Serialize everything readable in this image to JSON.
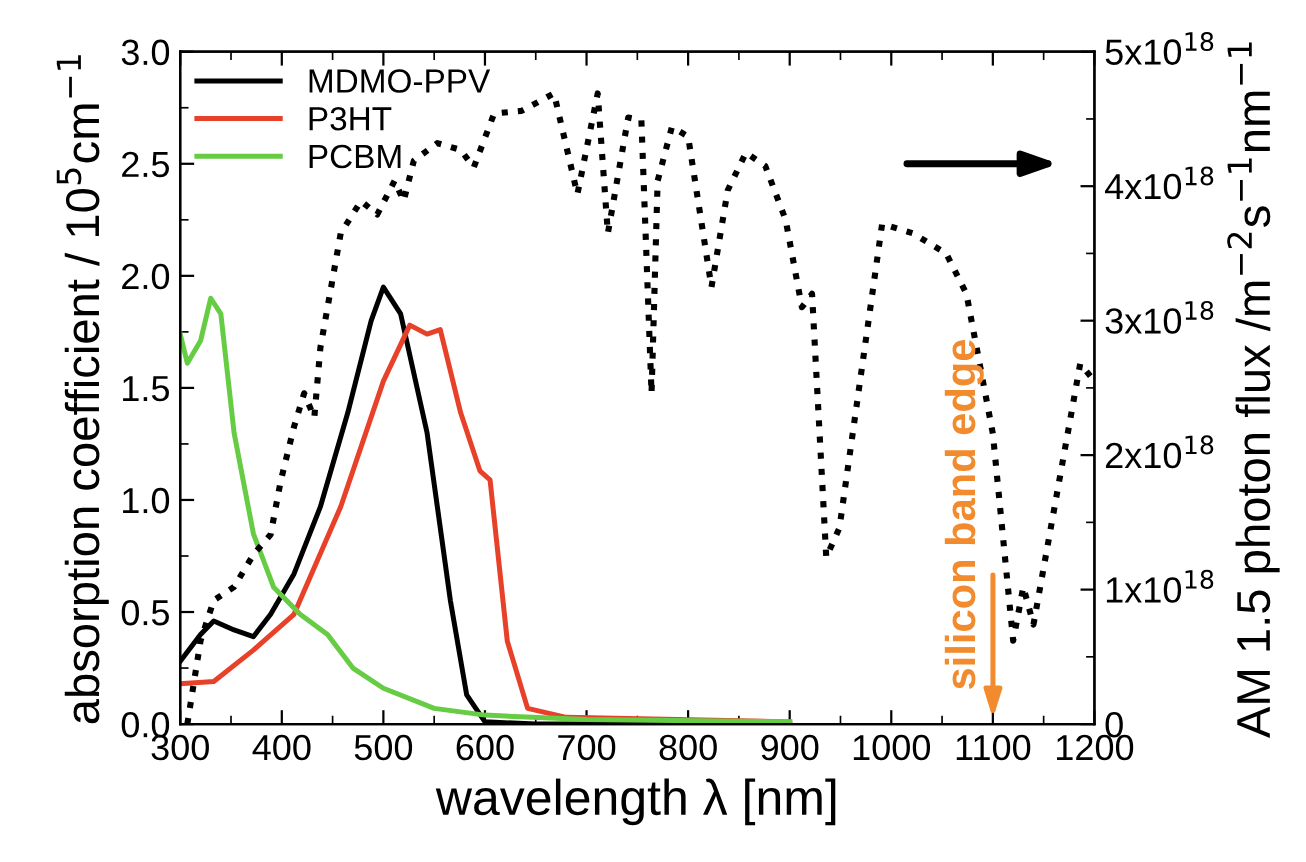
{
  "chart_data": {
    "type": "line",
    "xlabel": "wavelength λ [nm]",
    "ylabel": "absorption coefficient / 10$^{5}$cm$^{−1}$",
    "y2label": "AM 1.5 photon flux /m$^{−2}$s$^{−1}$nm$^{−1}$",
    "xlim": [
      300,
      1200
    ],
    "xticks": [
      300,
      400,
      500,
      600,
      700,
      800,
      900,
      1000,
      1100,
      1200
    ],
    "ylim": [
      0,
      3.0
    ],
    "yticks": [
      {
        "value": 0,
        "label": "0.0"
      },
      {
        "value": 0.5,
        "label": "0.5"
      },
      {
        "value": 1.0,
        "label": "1.0"
      },
      {
        "value": 1.5,
        "label": "1.5"
      },
      {
        "value": 2.0,
        "label": "2.0"
      },
      {
        "value": 2.5,
        "label": "2.5"
      },
      {
        "value": 3.0,
        "label": "3.0"
      }
    ],
    "y2lim": [
      0,
      5e+18
    ],
    "y2ticks": [
      {
        "value": 0,
        "label": "0"
      },
      {
        "value": 1e+18,
        "label": "1x10$^{18}$"
      },
      {
        "value": 2e+18,
        "label": "2x10$^{18}$"
      },
      {
        "value": 3e+18,
        "label": "3x10$^{18}$"
      },
      {
        "value": 4e+18,
        "label": "4x10$^{18}$"
      },
      {
        "value": 5e+18,
        "label": "5x10$^{18}$"
      }
    ],
    "legend": "top left",
    "grid": false,
    "annotations": [
      "silicon band edge"
    ],
    "series": [
      {
        "name": "MDMO-PPV",
        "color": "#000000",
        "line_style": "solid",
        "x": [
          300,
          320,
          333,
          353,
          372,
          389,
          412,
          438,
          465,
          488,
          500,
          517,
          543,
          566,
          582,
          600,
          650,
          900
        ],
        "values": [
          0.28,
          0.4,
          0.46,
          0.42,
          0.39,
          0.49,
          0.67,
          0.97,
          1.39,
          1.8,
          1.95,
          1.83,
          1.3,
          0.55,
          0.13,
          0.01,
          0,
          0
        ]
      },
      {
        "name": "P3HT",
        "color": "#e8412a",
        "line_style": "solid",
        "x": [
          300,
          333,
          372,
          412,
          458,
          500,
          526,
          543,
          556,
          576,
          595,
          605,
          622,
          642,
          680,
          900
        ],
        "values": [
          0.18,
          0.19,
          0.33,
          0.49,
          0.97,
          1.53,
          1.78,
          1.74,
          1.76,
          1.39,
          1.13,
          1.09,
          0.37,
          0.07,
          0.03,
          0.01
        ]
      },
      {
        "name": "PCBM",
        "color": "#66cc44",
        "line_style": "solid",
        "x": [
          300,
          307,
          320,
          330,
          340,
          353,
          372,
          392,
          418,
          445,
          470,
          500,
          550,
          600,
          700,
          900
        ],
        "values": [
          1.74,
          1.61,
          1.71,
          1.9,
          1.83,
          1.3,
          0.85,
          0.61,
          0.49,
          0.4,
          0.25,
          0.16,
          0.07,
          0.04,
          0.02,
          0.01
        ]
      },
      {
        "color": "#000000",
        "axis": "y2",
        "line_style": "dotted",
        "x": [
          307,
          320,
          333,
          353,
          372,
          389,
          399,
          412,
          422,
          432,
          438,
          458,
          478,
          494,
          511,
          520,
          530,
          553,
          576,
          589,
          609,
          636,
          668,
          691,
          711,
          721,
          741,
          754,
          764,
          770,
          784,
          800,
          823,
          839,
          857,
          876,
          896,
          912,
          922,
          936,
          949,
          991,
          1021,
          1054,
          1074,
          1100,
          1120,
          1130,
          1140,
          1186,
          1199
        ],
        "values": [
          0,
          6.2e+17,
          9.2e+17,
          1.02e+18,
          1.26e+18,
          1.41e+18,
          1.81e+18,
          2.21e+18,
          2.46e+18,
          2.28e+18,
          2.8e+18,
          3.65e+18,
          3.89e+18,
          3.79e+18,
          4.04e+18,
          3.89e+18,
          4.19e+18,
          4.32e+18,
          4.27e+18,
          4.14e+18,
          4.54e+18,
          4.56e+18,
          4.69e+18,
          3.94e+18,
          4.69e+18,
          3.65e+18,
          4.51e+18,
          4.49e+18,
          2.46e+18,
          4.04e+18,
          4.44e+18,
          4.37e+18,
          3.25e+18,
          3.97e+18,
          4.25e+18,
          4.15e+18,
          3.75e+18,
          3.1e+18,
          3.2e+18,
          1.24e+18,
          1.46e+18,
          3.72e+18,
          3.65e+18,
          3.5e+18,
          3.2e+18,
          2.16e+18,
          6.2e+17,
          1.02e+18,
          7.4e+17,
          2.68e+18,
          2.56e+18
        ]
      }
    ]
  }
}
